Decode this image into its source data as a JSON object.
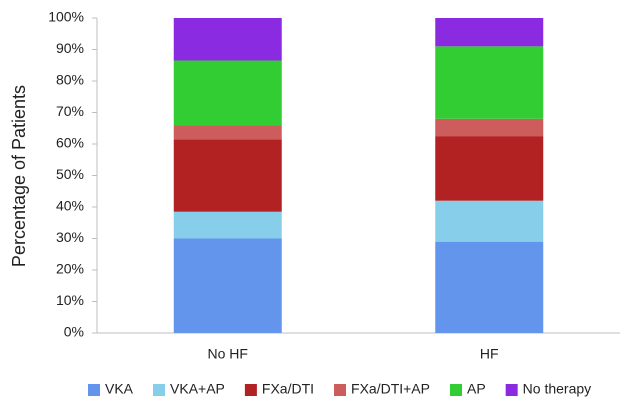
{
  "chart_data": {
    "type": "stacked_bar",
    "y_label": "Percentage of Patients",
    "categories": [
      "No HF",
      "HF"
    ],
    "series": [
      {
        "name": "VKA",
        "color": "#6495ed",
        "values": [
          30,
          29
        ]
      },
      {
        "name": "VKA+AP",
        "color": "#87ceeb",
        "values": [
          8.5,
          13
        ]
      },
      {
        "name": "FXa/DTI",
        "color": "#b22222",
        "values": [
          23,
          20.5
        ]
      },
      {
        "name": "FXa/DTI+AP",
        "color": "#cd5c5c",
        "values": [
          4.5,
          5.5
        ]
      },
      {
        "name": "AP",
        "color": "#32cd32",
        "values": [
          20.5,
          23
        ]
      },
      {
        "name": "No therapy",
        "color": "#8a2be2",
        "values": [
          13.5,
          9
        ]
      }
    ],
    "ylim": [
      0,
      100
    ],
    "yticks": [
      {
        "value": 0,
        "label": "0%"
      },
      {
        "value": 10,
        "label": "10%"
      },
      {
        "value": 20,
        "label": "20%"
      },
      {
        "value": 30,
        "label": "30%"
      },
      {
        "value": 40,
        "label": "40%"
      },
      {
        "value": 50,
        "label": "50%"
      },
      {
        "value": 60,
        "label": "60%"
      },
      {
        "value": 70,
        "label": "70%"
      },
      {
        "value": 80,
        "label": "80%"
      },
      {
        "value": 90,
        "label": "90%"
      },
      {
        "value": 100,
        "label": "100%"
      }
    ],
    "grid": false,
    "legend": "bottom"
  }
}
